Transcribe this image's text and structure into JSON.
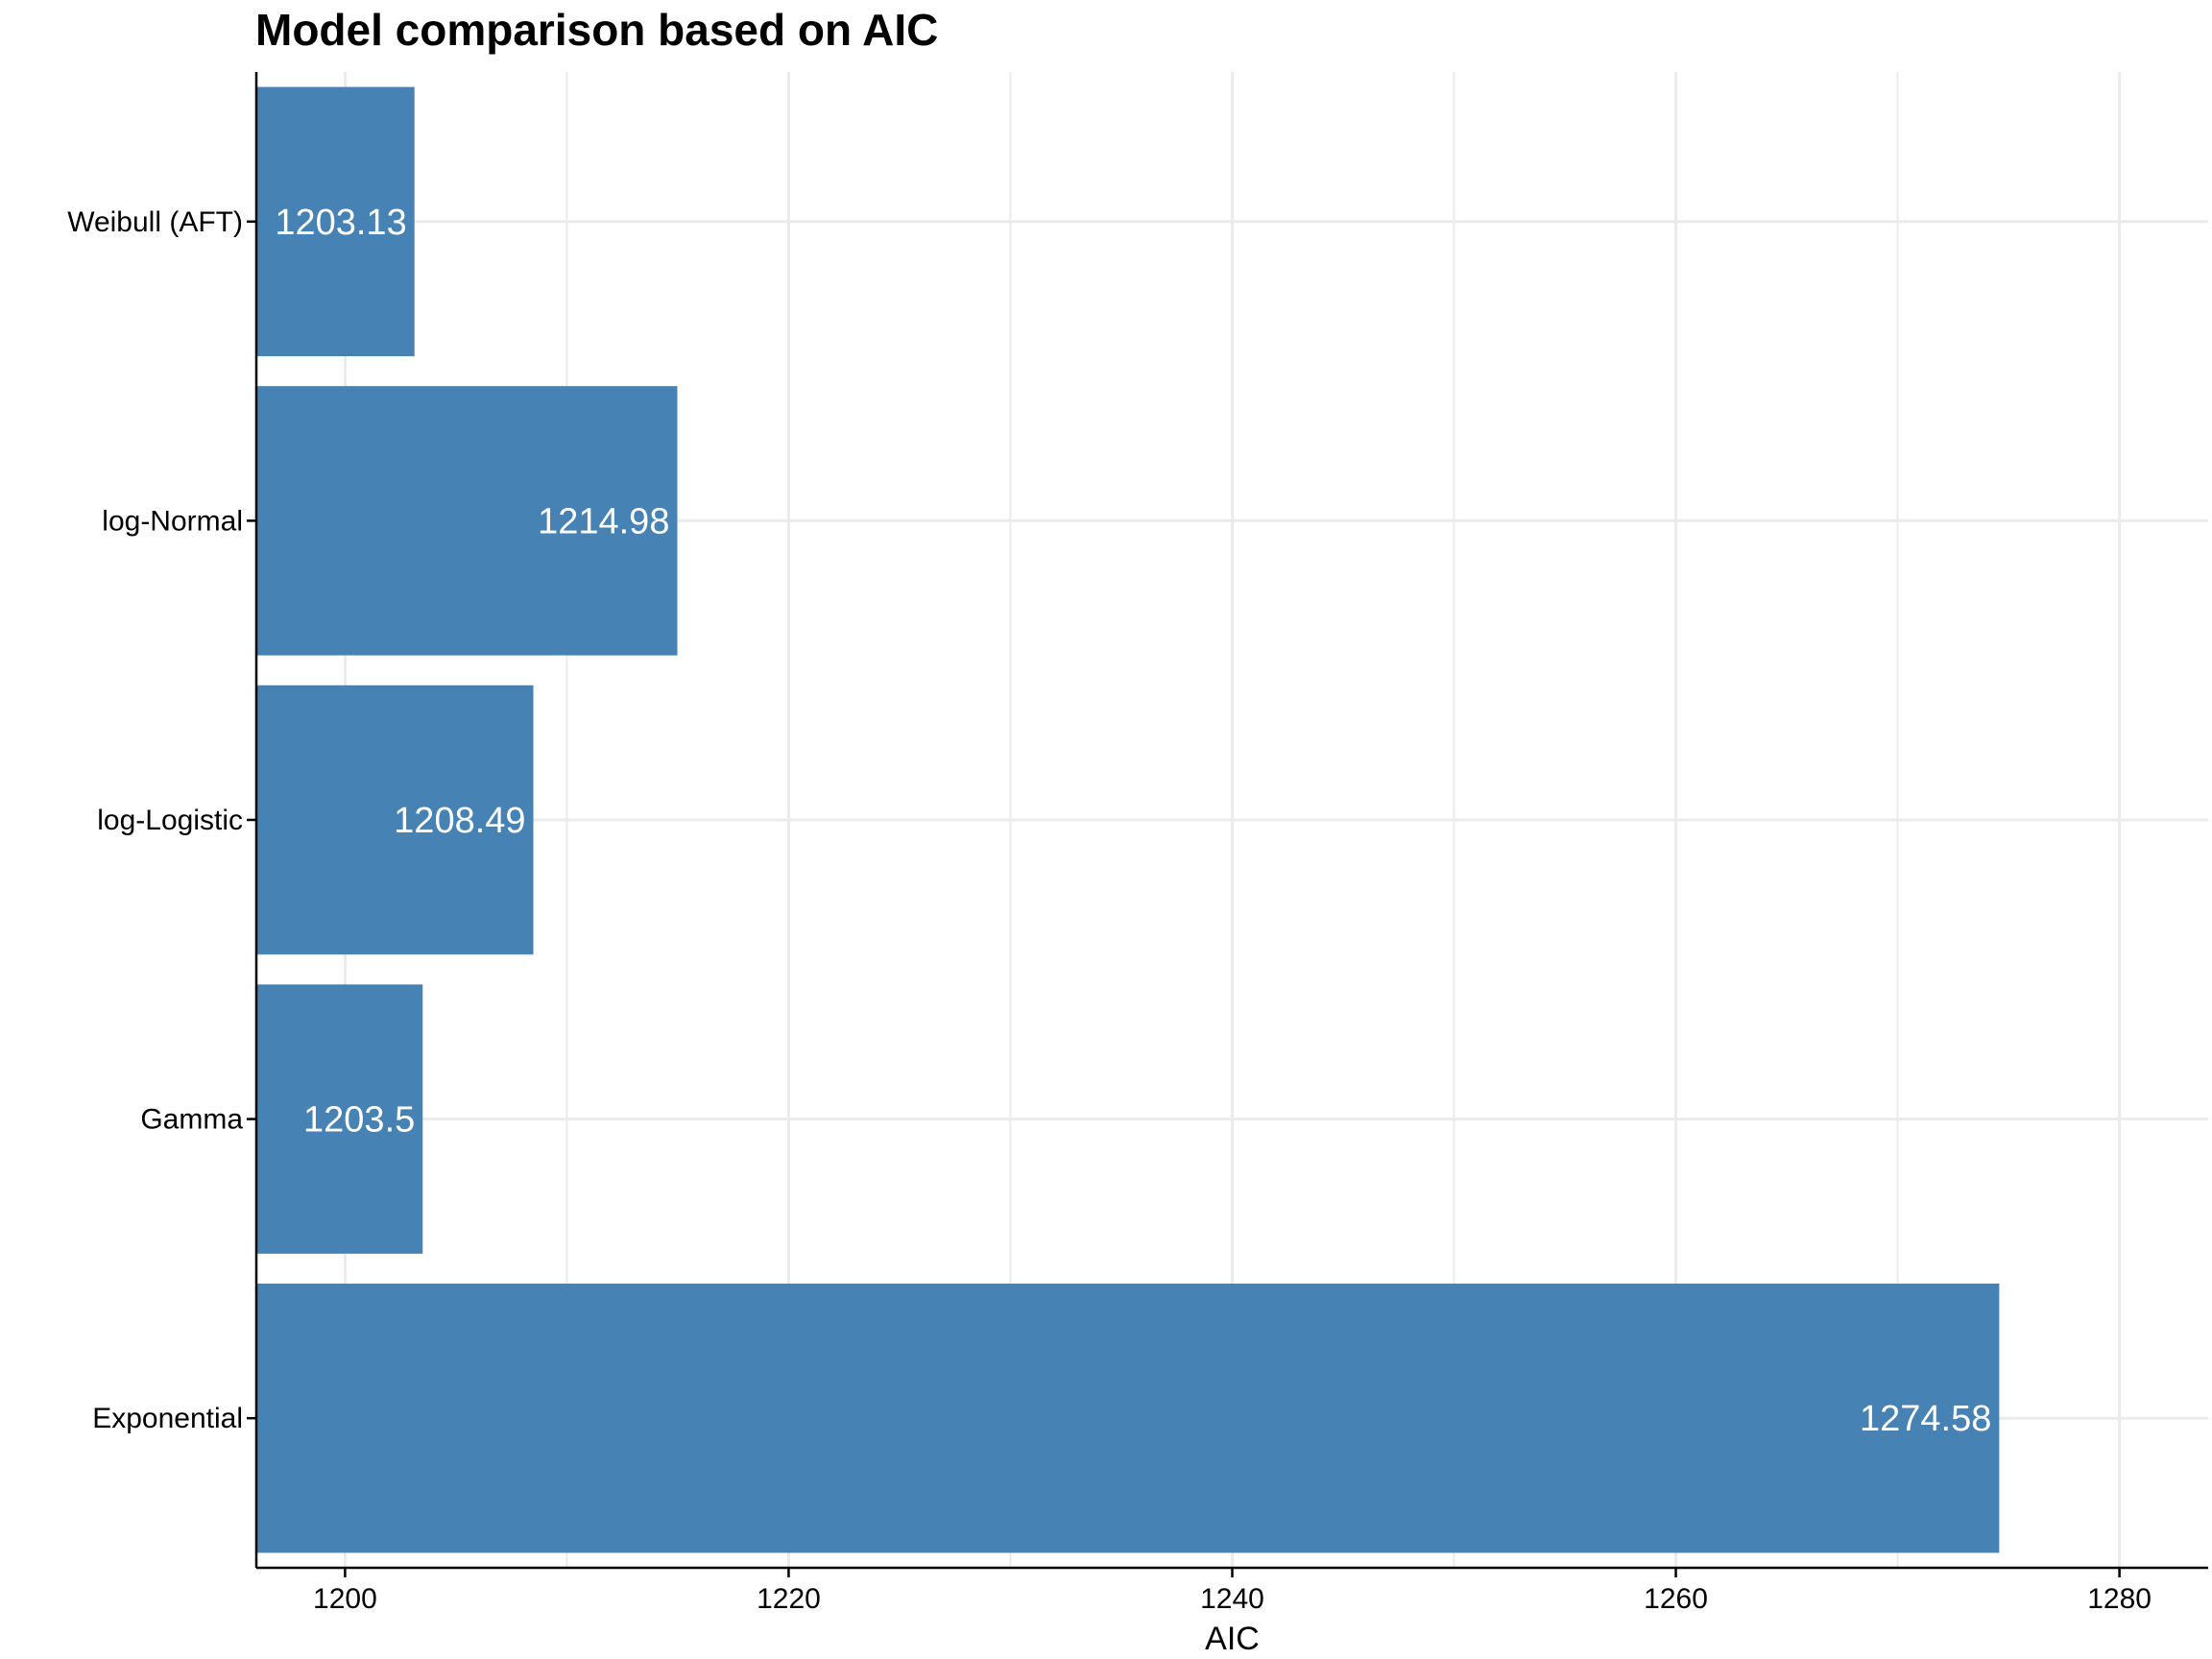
{
  "chart_data": {
    "type": "bar",
    "orientation": "horizontal",
    "title": "Model comparison based on AIC",
    "xlabel": "AIC",
    "ylabel": "",
    "categories": [
      "Weibull (AFT)",
      "log-Normal",
      "log-Logistic",
      "Gamma",
      "Exponential"
    ],
    "values": [
      1203.13,
      1214.98,
      1208.49,
      1203.5,
      1274.58
    ],
    "data_labels": [
      "1203.13",
      "1214.98",
      "1208.49",
      "1203.5",
      "1274.58"
    ],
    "xlim": [
      1196,
      1284
    ],
    "xticks": [
      1200,
      1220,
      1240,
      1260,
      1280
    ],
    "xtick_labels": [
      "1200",
      "1220",
      "1240",
      "1260",
      "1280"
    ],
    "grid": true,
    "legend": "none",
    "colors": {
      "bar": "#4682b4",
      "grid": "#ebebeb",
      "axis": "#000000",
      "bar_label": "#ffffff"
    }
  }
}
